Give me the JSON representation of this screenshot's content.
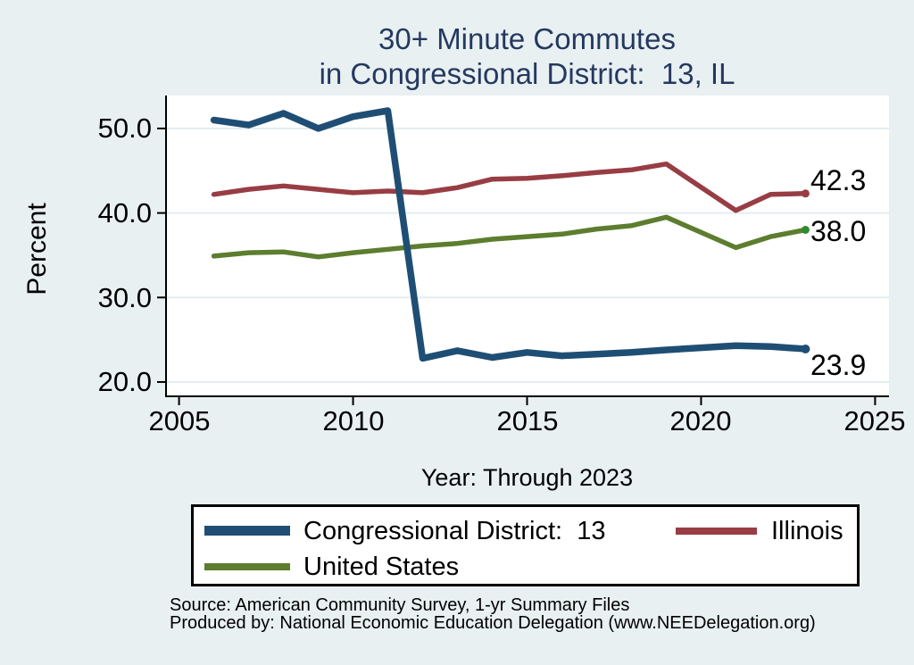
{
  "title": {
    "line1": "30+ Minute Commutes",
    "line2": "in Congressional District:  13, IL"
  },
  "y_axis": {
    "label": "Percent"
  },
  "x_axis": {
    "label": "Year: Through 2023"
  },
  "legend": {
    "items": [
      {
        "label": "Congressional District:  13",
        "color": "#1f4e74"
      },
      {
        "label": "Illinois",
        "color": "#983d44"
      },
      {
        "label": "United States",
        "color": "#5d7d2f"
      }
    ]
  },
  "footer": {
    "line1": "Source: American Community Survey, 1-yr Summary Files",
    "line2": "Produced by: National Economic Education Delegation (www.NEEDelegation.org)"
  },
  "colors": {
    "background": "#e9f0f2",
    "plot_background": "#ffffff",
    "grid": "#e3edf0",
    "axis": "#000000",
    "title": "#24395f",
    "us_end_marker": "#2e8b2e"
  },
  "chart_data": {
    "type": "line",
    "title": "30+ Minute Commutes in Congressional District: 13, IL",
    "xlabel": "Year: Through 2023",
    "ylabel": "Percent",
    "x": [
      2006,
      2007,
      2008,
      2009,
      2010,
      2011,
      2012,
      2013,
      2014,
      2015,
      2016,
      2017,
      2018,
      2019,
      2021,
      2022,
      2023
    ],
    "series": [
      {
        "name": "Congressional District:  13",
        "color": "#1f4e74",
        "line_width": 7.5,
        "end_label": "23.9",
        "values": [
          51.0,
          50.4,
          51.8,
          50.0,
          51.4,
          52.1,
          22.8,
          23.7,
          22.9,
          23.5,
          23.1,
          23.3,
          23.5,
          23.8,
          24.3,
          24.2,
          23.9
        ]
      },
      {
        "name": "Illinois",
        "color": "#983d44",
        "line_width": 5.5,
        "end_label": "42.3",
        "values": [
          42.2,
          42.8,
          43.2,
          42.8,
          42.4,
          42.6,
          42.4,
          43.0,
          44.0,
          44.1,
          44.4,
          44.8,
          45.1,
          45.8,
          40.3,
          42.2,
          42.3
        ]
      },
      {
        "name": "United States",
        "color": "#5d7d2f",
        "line_width": 5.5,
        "end_label": "38.0",
        "end_marker_color": "#2e8b2e",
        "values": [
          34.9,
          35.3,
          35.4,
          34.8,
          35.3,
          35.7,
          36.1,
          36.4,
          36.9,
          37.2,
          37.5,
          38.1,
          38.5,
          39.5,
          35.9,
          37.2,
          38.0
        ]
      }
    ],
    "xticks": [
      2005,
      2010,
      2015,
      2020,
      2025
    ],
    "xtick_labels": [
      "2005",
      "2010",
      "2015",
      "2020",
      "2025"
    ],
    "yticks": [
      20,
      30,
      40,
      50
    ],
    "ytick_labels": [
      "20.0",
      "30.0",
      "40.0",
      "50.0"
    ],
    "xlim": [
      2004.6,
      2025.4
    ],
    "ylim": [
      18.2,
      53.9
    ],
    "grid": true,
    "legend_position": "bottom"
  }
}
